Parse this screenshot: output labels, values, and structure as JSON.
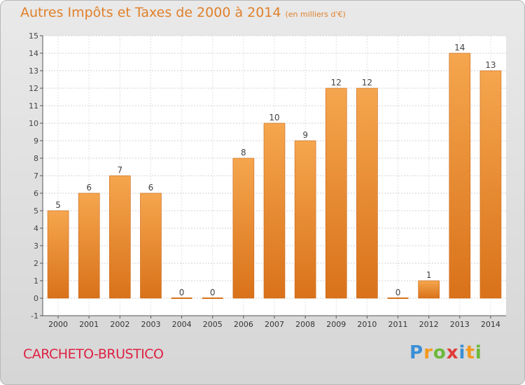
{
  "title": "Autres Impôts et Taxes de 2000 à 2014",
  "unit": "(en milliers d'€)",
  "commune": "CARCHETO-BRUSTICO",
  "logo": {
    "letters": [
      "P",
      "r",
      "o",
      "x",
      "i",
      "t",
      "i"
    ],
    "colors": [
      "#3b8fd6",
      "#f29a1f",
      "#6bb93a",
      "#e23a3a",
      "#3b8fd6",
      "#f29a1f",
      "#6bb93a"
    ]
  },
  "colors": {
    "title": "#e0802a",
    "commune": "#dd2244",
    "bar_light": "#f5a64e",
    "bar_dark": "#d9721a"
  },
  "chart_data": {
    "type": "bar",
    "categories": [
      "2000",
      "2001",
      "2002",
      "2003",
      "2004",
      "2005",
      "2006",
      "2007",
      "2008",
      "2009",
      "2010",
      "2011",
      "2012",
      "2013",
      "2014"
    ],
    "values": [
      5,
      6,
      7,
      6,
      0,
      0,
      8,
      10,
      9,
      12,
      12,
      0,
      1,
      14,
      13
    ],
    "title": "Autres Impôts et Taxes de 2000 à 2014",
    "xlabel": "",
    "ylabel": "",
    "ylim": [
      -1,
      15
    ],
    "yticks": [
      -1,
      0,
      1,
      2,
      3,
      4,
      5,
      6,
      7,
      8,
      9,
      10,
      11,
      12,
      13,
      14,
      15
    ],
    "grid": true,
    "legend": "none"
  }
}
